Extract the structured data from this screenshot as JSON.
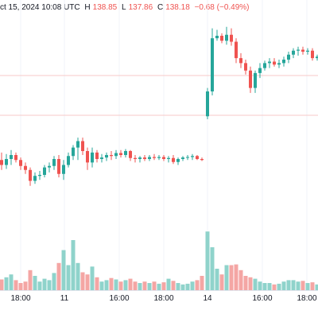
{
  "legend": {
    "date_text": "ct 15, 2024 10:08 UTC",
    "high_label": "H",
    "high_value": "138.85",
    "low_label": "L",
    "low_value": "137.86",
    "close_label": "C",
    "close_value": "138.18",
    "change": "−0.68 (−0.49%)"
  },
  "colors": {
    "up": "#26a69a",
    "down": "#ef5350",
    "up_volume": "#8fd3cb",
    "down_volume": "#f4a6a4",
    "gridline": "#f0f3fa",
    "reference_line": "#f7c9c8",
    "axis_text": "#131722",
    "axis_line": "#e0e3eb"
  },
  "chart_data": {
    "type": "candlestick",
    "price_range": [
      137.0,
      141.0
    ],
    "volume_range": [
      0,
      100
    ],
    "x_range": [
      0,
      400
    ],
    "x_tick_labels": [
      {
        "label": "18:00",
        "x": 26
      },
      {
        "label": "11",
        "x": 81
      },
      {
        "label": "16:00",
        "x": 150
      },
      {
        "label": "18:00",
        "x": 206
      },
      {
        "label": "14",
        "x": 261
      },
      {
        "label": "16:00",
        "x": 330
      },
      {
        "label": "18:00",
        "x": 386
      }
    ],
    "reference_lines": [
      139.8,
      139.0
    ],
    "candles": [
      {
        "x": 2,
        "o": 138.1,
        "h": 138.25,
        "l": 137.9,
        "c": 138.0,
        "v": 15
      },
      {
        "x": 8,
        "o": 138.0,
        "h": 138.22,
        "l": 137.92,
        "c": 138.12,
        "v": 18
      },
      {
        "x": 14,
        "o": 138.12,
        "h": 138.3,
        "l": 138.0,
        "c": 138.2,
        "v": 22
      },
      {
        "x": 20,
        "o": 138.2,
        "h": 138.25,
        "l": 138.05,
        "c": 138.1,
        "v": 14
      },
      {
        "x": 26,
        "o": 138.1,
        "h": 138.15,
        "l": 137.9,
        "c": 137.98,
        "v": 10
      },
      {
        "x": 32,
        "o": 137.98,
        "h": 138.05,
        "l": 137.82,
        "c": 137.9,
        "v": 12
      },
      {
        "x": 38,
        "o": 137.9,
        "h": 137.95,
        "l": 137.58,
        "c": 137.68,
        "v": 28
      },
      {
        "x": 44,
        "o": 137.68,
        "h": 137.85,
        "l": 137.62,
        "c": 137.78,
        "v": 20
      },
      {
        "x": 50,
        "o": 137.78,
        "h": 137.88,
        "l": 137.7,
        "c": 137.8,
        "v": 12
      },
      {
        "x": 56,
        "o": 137.8,
        "h": 138.0,
        "l": 137.75,
        "c": 137.95,
        "v": 16
      },
      {
        "x": 62,
        "o": 137.95,
        "h": 138.05,
        "l": 137.85,
        "c": 137.98,
        "v": 14
      },
      {
        "x": 68,
        "o": 137.98,
        "h": 138.18,
        "l": 137.9,
        "c": 138.12,
        "v": 24
      },
      {
        "x": 74,
        "o": 138.12,
        "h": 138.2,
        "l": 137.75,
        "c": 137.82,
        "v": 38
      },
      {
        "x": 80,
        "o": 137.82,
        "h": 138.1,
        "l": 137.7,
        "c": 138.0,
        "v": 56
      },
      {
        "x": 86,
        "o": 138.0,
        "h": 138.25,
        "l": 137.95,
        "c": 138.18,
        "v": 35
      },
      {
        "x": 92,
        "o": 138.18,
        "h": 138.4,
        "l": 138.1,
        "c": 138.35,
        "v": 70
      },
      {
        "x": 98,
        "o": 138.35,
        "h": 138.55,
        "l": 138.1,
        "c": 138.48,
        "v": 38
      },
      {
        "x": 104,
        "o": 138.48,
        "h": 138.55,
        "l": 138.2,
        "c": 138.28,
        "v": 25
      },
      {
        "x": 110,
        "o": 138.28,
        "h": 138.35,
        "l": 137.9,
        "c": 138.05,
        "v": 22
      },
      {
        "x": 116,
        "o": 138.05,
        "h": 138.35,
        "l": 137.95,
        "c": 138.25,
        "v": 33
      },
      {
        "x": 122,
        "o": 138.25,
        "h": 138.3,
        "l": 138.05,
        "c": 138.12,
        "v": 18
      },
      {
        "x": 128,
        "o": 138.12,
        "h": 138.22,
        "l": 138.05,
        "c": 138.15,
        "v": 12
      },
      {
        "x": 134,
        "o": 138.15,
        "h": 138.25,
        "l": 138.08,
        "c": 138.2,
        "v": 14
      },
      {
        "x": 140,
        "o": 138.2,
        "h": 138.28,
        "l": 138.1,
        "c": 138.18,
        "v": 17
      },
      {
        "x": 146,
        "o": 138.18,
        "h": 138.3,
        "l": 138.12,
        "c": 138.24,
        "v": 15
      },
      {
        "x": 152,
        "o": 138.24,
        "h": 138.3,
        "l": 138.15,
        "c": 138.2,
        "v": 12
      },
      {
        "x": 158,
        "o": 138.2,
        "h": 138.32,
        "l": 138.15,
        "c": 138.28,
        "v": 14
      },
      {
        "x": 164,
        "o": 138.28,
        "h": 138.3,
        "l": 138.08,
        "c": 138.14,
        "v": 16
      },
      {
        "x": 170,
        "o": 138.14,
        "h": 138.2,
        "l": 138.05,
        "c": 138.12,
        "v": 12
      },
      {
        "x": 176,
        "o": 138.12,
        "h": 138.18,
        "l": 138.05,
        "c": 138.15,
        "v": 10
      },
      {
        "x": 182,
        "o": 138.15,
        "h": 138.2,
        "l": 138.08,
        "c": 138.12,
        "v": 12
      },
      {
        "x": 188,
        "o": 138.12,
        "h": 138.2,
        "l": 138.08,
        "c": 138.16,
        "v": 10
      },
      {
        "x": 194,
        "o": 138.16,
        "h": 138.22,
        "l": 138.1,
        "c": 138.14,
        "v": 12
      },
      {
        "x": 200,
        "o": 138.14,
        "h": 138.2,
        "l": 138.1,
        "c": 138.16,
        "v": 9
      },
      {
        "x": 206,
        "o": 138.16,
        "h": 138.2,
        "l": 138.08,
        "c": 138.12,
        "v": 11
      },
      {
        "x": 212,
        "o": 138.12,
        "h": 138.18,
        "l": 138.05,
        "c": 138.14,
        "v": 16
      },
      {
        "x": 218,
        "o": 138.14,
        "h": 138.2,
        "l": 138.02,
        "c": 138.06,
        "v": 13
      },
      {
        "x": 224,
        "o": 138.06,
        "h": 138.15,
        "l": 138.0,
        "c": 138.12,
        "v": 10
      },
      {
        "x": 230,
        "o": 138.12,
        "h": 138.18,
        "l": 138.08,
        "c": 138.15,
        "v": 8
      },
      {
        "x": 236,
        "o": 138.15,
        "h": 138.2,
        "l": 138.1,
        "c": 138.16,
        "v": 9
      },
      {
        "x": 242,
        "o": 138.16,
        "h": 138.22,
        "l": 138.1,
        "c": 138.18,
        "v": 12
      },
      {
        "x": 248,
        "o": 138.18,
        "h": 138.2,
        "l": 138.1,
        "c": 138.12,
        "v": 14
      },
      {
        "x": 254,
        "o": 138.12,
        "h": 138.15,
        "l": 138.08,
        "c": 138.1,
        "v": 20
      },
      {
        "x": 261,
        "o": 138.98,
        "h": 139.55,
        "l": 138.92,
        "c": 139.48,
        "v": 82
      },
      {
        "x": 267,
        "o": 139.48,
        "h": 140.75,
        "l": 139.4,
        "c": 140.55,
        "v": 60
      },
      {
        "x": 273,
        "o": 140.55,
        "h": 140.72,
        "l": 140.5,
        "c": 140.6,
        "v": 30
      },
      {
        "x": 279,
        "o": 140.6,
        "h": 140.65,
        "l": 140.45,
        "c": 140.5,
        "v": 22
      },
      {
        "x": 285,
        "o": 140.5,
        "h": 140.78,
        "l": 140.42,
        "c": 140.62,
        "v": 35
      },
      {
        "x": 291,
        "o": 140.62,
        "h": 140.75,
        "l": 140.4,
        "c": 140.48,
        "v": 35
      },
      {
        "x": 297,
        "o": 140.48,
        "h": 140.55,
        "l": 140.05,
        "c": 140.15,
        "v": 36
      },
      {
        "x": 303,
        "o": 140.15,
        "h": 140.25,
        "l": 139.95,
        "c": 140.05,
        "v": 28
      },
      {
        "x": 309,
        "o": 140.05,
        "h": 140.12,
        "l": 139.82,
        "c": 139.9,
        "v": 20
      },
      {
        "x": 315,
        "o": 139.9,
        "h": 139.98,
        "l": 139.45,
        "c": 139.55,
        "v": 18
      },
      {
        "x": 321,
        "o": 139.55,
        "h": 139.9,
        "l": 139.45,
        "c": 139.85,
        "v": 16
      },
      {
        "x": 327,
        "o": 139.85,
        "h": 140.05,
        "l": 139.75,
        "c": 139.95,
        "v": 12
      },
      {
        "x": 333,
        "o": 139.95,
        "h": 140.1,
        "l": 139.9,
        "c": 140.05,
        "v": 10
      },
      {
        "x": 339,
        "o": 140.05,
        "h": 140.15,
        "l": 139.95,
        "c": 140.08,
        "v": 10
      },
      {
        "x": 345,
        "o": 140.08,
        "h": 140.15,
        "l": 139.98,
        "c": 140.02,
        "v": 8
      },
      {
        "x": 351,
        "o": 140.02,
        "h": 140.12,
        "l": 139.95,
        "c": 140.05,
        "v": 9
      },
      {
        "x": 357,
        "o": 140.05,
        "h": 140.18,
        "l": 139.98,
        "c": 140.12,
        "v": 12
      },
      {
        "x": 363,
        "o": 140.12,
        "h": 140.28,
        "l": 140.05,
        "c": 140.22,
        "v": 14
      },
      {
        "x": 369,
        "o": 140.22,
        "h": 140.35,
        "l": 140.15,
        "c": 140.3,
        "v": 14
      },
      {
        "x": 375,
        "o": 140.3,
        "h": 140.38,
        "l": 140.2,
        "c": 140.32,
        "v": 12
      },
      {
        "x": 381,
        "o": 140.32,
        "h": 140.38,
        "l": 140.22,
        "c": 140.28,
        "v": 13
      },
      {
        "x": 387,
        "o": 140.28,
        "h": 140.35,
        "l": 140.22,
        "c": 140.3,
        "v": 10
      },
      {
        "x": 393,
        "o": 140.3,
        "h": 140.35,
        "l": 140.1,
        "c": 140.15,
        "v": 11
      },
      {
        "x": 399,
        "o": 140.15,
        "h": 140.22,
        "l": 140.1,
        "c": 140.18,
        "v": 8
      }
    ]
  }
}
